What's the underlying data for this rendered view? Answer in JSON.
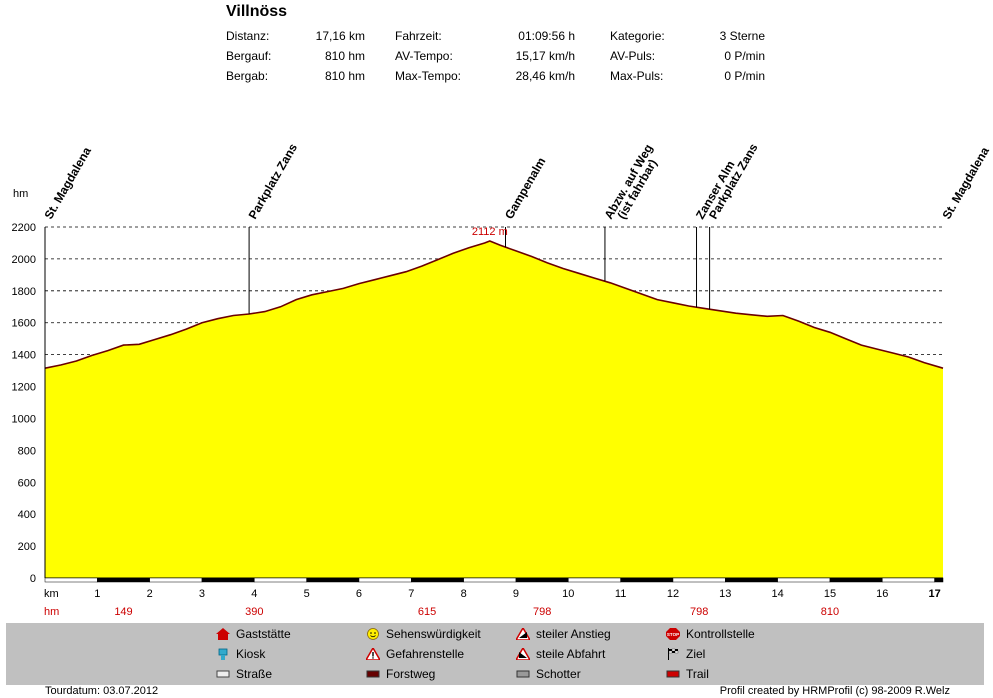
{
  "header": {
    "title": "Villnöss",
    "stats": [
      {
        "label": "Distanz:",
        "value": "17,16 km"
      },
      {
        "label": "Bergauf:",
        "value": "810 hm"
      },
      {
        "label": "Bergab:",
        "value": "810 hm"
      },
      {
        "label": "Fahrzeit:",
        "value": "01:09:56 h"
      },
      {
        "label": "AV-Tempo:",
        "value": "15,17 km/h"
      },
      {
        "label": "Max-Tempo:",
        "value": "28,46 km/h"
      },
      {
        "label": "Kategorie:",
        "value": "3 Sterne"
      },
      {
        "label": "AV-Puls:",
        "value": "0 P/min"
      },
      {
        "label": "Max-Puls:",
        "value": "0 P/min"
      }
    ]
  },
  "chart_data": {
    "type": "area",
    "ylabel": "hm",
    "xlabel": "km",
    "ylim": [
      0,
      2200
    ],
    "xlim": [
      0,
      17.16
    ],
    "yticks": [
      0,
      200,
      400,
      600,
      800,
      1000,
      1200,
      1400,
      1600,
      1800,
      2000,
      2200
    ],
    "xticks": [
      1,
      2,
      3,
      4,
      5,
      6,
      7,
      8,
      9,
      10,
      11,
      12,
      13,
      14,
      15,
      16,
      17
    ],
    "grid": "horizontal dashed",
    "fill_color": "#ffff00",
    "line_color": "#6b0000",
    "peak_label": "2112 m",
    "x": [
      0,
      0.3,
      0.6,
      0.9,
      1.2,
      1.5,
      1.8,
      2.1,
      2.4,
      2.7,
      3.0,
      3.3,
      3.6,
      3.9,
      4.2,
      4.5,
      4.8,
      5.1,
      5.4,
      5.7,
      6.0,
      6.3,
      6.6,
      6.9,
      7.2,
      7.5,
      7.8,
      8.1,
      8.4,
      8.5,
      8.7,
      9.0,
      9.3,
      9.6,
      9.9,
      10.2,
      10.5,
      10.8,
      11.1,
      11.4,
      11.7,
      12.0,
      12.3,
      12.6,
      12.9,
      13.2,
      13.5,
      13.8,
      14.1,
      14.4,
      14.7,
      15.0,
      15.3,
      15.6,
      15.9,
      16.2,
      16.5,
      16.8,
      17.16
    ],
    "y": [
      1315,
      1335,
      1360,
      1395,
      1425,
      1460,
      1465,
      1495,
      1525,
      1560,
      1600,
      1625,
      1645,
      1655,
      1670,
      1700,
      1745,
      1775,
      1795,
      1815,
      1845,
      1870,
      1895,
      1920,
      1955,
      1995,
      2035,
      2070,
      2100,
      2112,
      2085,
      2050,
      2015,
      1975,
      1940,
      1910,
      1880,
      1850,
      1815,
      1780,
      1745,
      1725,
      1705,
      1690,
      1675,
      1660,
      1650,
      1640,
      1645,
      1610,
      1570,
      1540,
      1500,
      1460,
      1435,
      1410,
      1385,
      1350,
      1315
    ],
    "markers": [
      {
        "label": "St. Magdalena",
        "km": 0
      },
      {
        "label": "Parkplatz Zans",
        "km": 3.9
      },
      {
        "label": "Gampenalm",
        "km": 8.8
      },
      {
        "label": "Abzw. auf Weg",
        "label2": "(ist fahrbar)",
        "km": 10.7
      },
      {
        "label": "Zanser Alm",
        "km": 12.45
      },
      {
        "label": "Parkplatz Zans",
        "km": 12.7
      },
      {
        "label": "St. Magdalena",
        "km": 17.16
      }
    ],
    "hm_row": [
      {
        "km": 1.5,
        "value": "149"
      },
      {
        "km": 4.0,
        "value": "390"
      },
      {
        "km": 7.3,
        "value": "615"
      },
      {
        "km": 9.5,
        "value": "798"
      },
      {
        "km": 12.5,
        "value": "798"
      },
      {
        "km": 15.0,
        "value": "810"
      }
    ],
    "hm_label": "hm",
    "km_label": "km"
  },
  "legend": {
    "items": [
      {
        "label": "Gaststätte",
        "icon": "house-icon",
        "color": "#cc0000"
      },
      {
        "label": "Kiosk",
        "icon": "kiosk-icon",
        "color": "#33aacc"
      },
      {
        "label": "Straße",
        "icon": "road-icon",
        "color": "#e0e0e0"
      },
      {
        "label": "Sehenswürdigkeit",
        "icon": "smiley-icon",
        "color": "#ffee00"
      },
      {
        "label": "Gefahrenstelle",
        "icon": "danger-icon",
        "color": "#cc0000"
      },
      {
        "label": "Forstweg",
        "icon": "forest-road-icon",
        "color": "#660000"
      },
      {
        "label": "steiler Anstieg",
        "icon": "steep-up-icon",
        "color": "#cc0000"
      },
      {
        "label": "steile Abfahrt",
        "icon": "steep-down-icon",
        "color": "#cc0000"
      },
      {
        "label": "Schotter",
        "icon": "gravel-icon",
        "color": "#999999"
      },
      {
        "label": "Kontrollstelle",
        "icon": "stop-icon",
        "color": "#cc0000"
      },
      {
        "label": "Ziel",
        "icon": "finish-flag-icon",
        "color": "#000000"
      },
      {
        "label": "Trail",
        "icon": "trail-icon",
        "color": "#cc0000"
      }
    ]
  },
  "footer": {
    "tour_date": "Tourdatum: 03.07.2012",
    "credit": "Profil created by HRMProfil (c) 98-2009 R.Welz"
  }
}
